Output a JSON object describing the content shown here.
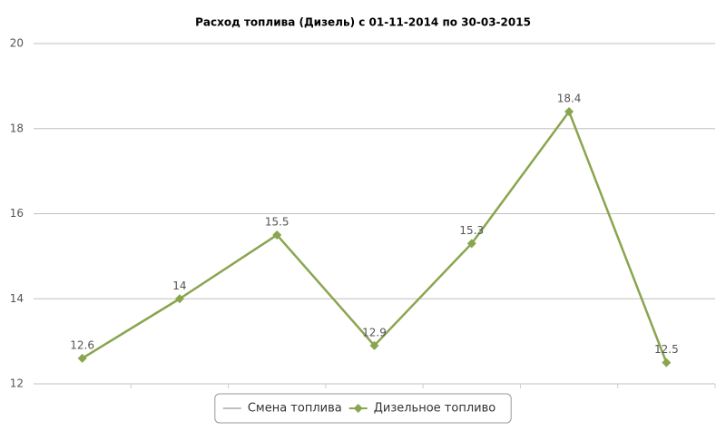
{
  "chart_data": {
    "type": "line",
    "title": "Расход топлива (Дизель) с 01-11-2014 по 30-03-2015",
    "categories": [
      null,
      null,
      null,
      null,
      null,
      null,
      null
    ],
    "series": [
      {
        "name": "Смена топлива",
        "color": "#c0c0c0",
        "values": [
          null,
          null,
          null,
          null,
          null,
          null,
          null
        ]
      },
      {
        "name": "Дизельное топливо",
        "color": "#89a54e",
        "values": [
          12.6,
          14,
          15.5,
          12.9,
          15.3,
          18.4,
          12.5
        ]
      }
    ],
    "ylim": [
      12,
      20
    ],
    "yticks": [
      12,
      14,
      16,
      18,
      20
    ],
    "grid": true,
    "legend": "bottom"
  }
}
